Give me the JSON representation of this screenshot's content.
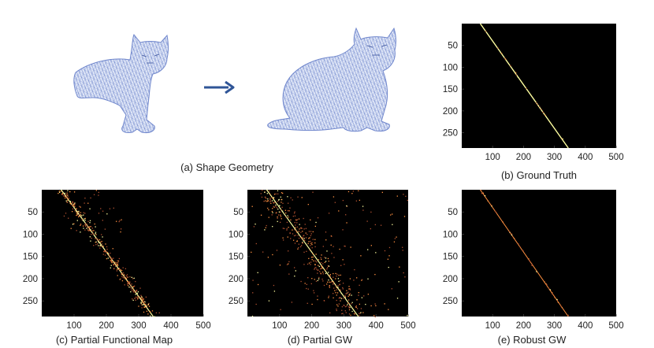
{
  "figure": {
    "panels": [
      {
        "id": "a",
        "caption": "(a) Shape Geometry"
      },
      {
        "id": "b",
        "caption": "(b) Ground Truth"
      },
      {
        "id": "c",
        "caption": "(c) Partial Functional Map"
      },
      {
        "id": "d",
        "caption": "(d) Partial GW"
      },
      {
        "id": "e",
        "caption": "(e) Robust GW"
      }
    ],
    "shape_geometry": {
      "source_shape_icon": "partial-cat-mesh-icon",
      "target_shape_icon": "full-cat-mesh-icon",
      "arrow_icon": "right-arrow-icon",
      "mesh_color": "#6f86cc",
      "arrow_color": "#2f5597"
    }
  },
  "chart_data": [
    {
      "type": "heatmap",
      "panel": "b",
      "title": "(b) Ground Truth",
      "xlim": [
        0,
        500
      ],
      "ylim": [
        0,
        285
      ],
      "x_ticks": [
        100,
        200,
        300,
        400,
        500
      ],
      "y_ticks": [
        50,
        100,
        150,
        200,
        250
      ],
      "x_tick_labels": [
        "100",
        "200",
        "300",
        "400",
        "500"
      ],
      "y_tick_labels": [
        "50",
        "100",
        "150",
        "200",
        "250"
      ],
      "diagonal": {
        "x_start": 60,
        "y_start": 0,
        "x_end": 345,
        "y_end": 285
      },
      "background": "#000000",
      "colors": [
        "#b05030",
        "#ff9040",
        "#ffffa0"
      ]
    },
    {
      "type": "heatmap",
      "panel": "c",
      "title": "(c) Partial Functional Map",
      "xlim": [
        0,
        500
      ],
      "ylim": [
        0,
        285
      ],
      "x_ticks": [
        100,
        200,
        300,
        400,
        500
      ],
      "y_ticks": [
        50,
        100,
        150,
        200,
        250
      ],
      "x_tick_labels": [
        "100",
        "200",
        "300",
        "400",
        "500"
      ],
      "y_tick_labels": [
        "50",
        "100",
        "150",
        "200",
        "250"
      ],
      "diagonal": {
        "x_start": 60,
        "y_start": 0,
        "x_end": 345,
        "y_end": 285
      },
      "background": "#000000",
      "colors": [
        "#b05030",
        "#ff9040",
        "#ffffa0"
      ]
    },
    {
      "type": "heatmap",
      "panel": "d",
      "title": "(d) Partial GW",
      "xlim": [
        0,
        500
      ],
      "ylim": [
        0,
        285
      ],
      "x_ticks": [
        100,
        200,
        300,
        400,
        500
      ],
      "y_ticks": [
        50,
        100,
        150,
        200,
        250
      ],
      "x_tick_labels": [
        "100",
        "200",
        "300",
        "400",
        "500"
      ],
      "y_tick_labels": [
        "50",
        "100",
        "150",
        "200",
        "250"
      ],
      "diagonal": {
        "x_start": 60,
        "y_start": 0,
        "x_end": 345,
        "y_end": 285
      },
      "background": "#000000",
      "colors": [
        "#b05030",
        "#ff9040",
        "#ffffa0"
      ]
    },
    {
      "type": "heatmap",
      "panel": "e",
      "title": "(e) Robust GW",
      "xlim": [
        0,
        500
      ],
      "ylim": [
        0,
        285
      ],
      "x_ticks": [
        100,
        200,
        300,
        400,
        500
      ],
      "y_ticks": [
        50,
        100,
        150,
        200,
        250
      ],
      "x_tick_labels": [
        "100",
        "200",
        "300",
        "400",
        "500"
      ],
      "y_tick_labels": [
        "50",
        "100",
        "150",
        "200",
        "250"
      ],
      "diagonal": {
        "x_start": 60,
        "y_start": 0,
        "x_end": 345,
        "y_end": 285
      },
      "background": "#000000",
      "colors": [
        "#b05030",
        "#ff9040",
        "#ffffa0"
      ]
    }
  ]
}
